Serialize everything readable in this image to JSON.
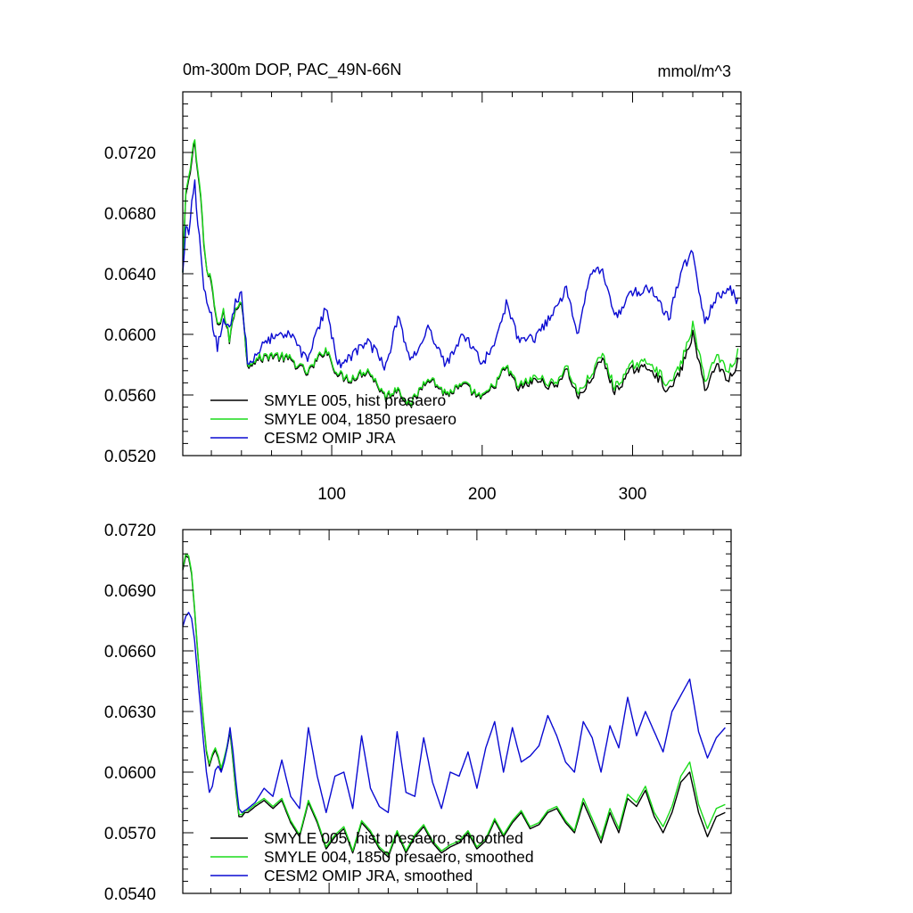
{
  "figure": {
    "title_left": "0m-300m DOP, PAC_49N-66N",
    "title_right": "mmol/m^3"
  },
  "chart_data": [
    {
      "type": "line",
      "title": "0m-300m DOP, PAC_49N-66N",
      "units": "mmol/m^3",
      "xlabel": "",
      "ylabel": "",
      "xlim": [
        1,
        372
      ],
      "ylim": [
        0.052,
        0.076
      ],
      "grid": false,
      "legend_position": "bottom-left",
      "x_ticks": [
        100,
        200,
        300
      ],
      "x_tick_labels": [
        "100",
        "200",
        "300"
      ],
      "y_ticks": [
        0.052,
        0.056,
        0.06,
        0.064,
        0.068,
        0.072
      ],
      "y_tick_labels": [
        "0.0520",
        "0.0560",
        "0.0600",
        "0.0640",
        "0.0680",
        "0.0720"
      ],
      "series": [
        {
          "name": "SMYLE 005, hist presaero",
          "color": "#000000",
          "noise": 0.0006,
          "x": [
            1,
            3,
            5,
            7,
            9,
            11,
            13,
            15,
            17,
            20,
            24,
            28,
            32,
            36,
            40,
            44,
            48,
            60,
            72,
            84,
            96,
            104,
            112,
            124,
            136,
            144,
            152,
            164,
            176,
            188,
            200,
            208,
            216,
            224,
            236,
            248,
            256,
            264,
            272,
            280,
            288,
            300,
            312,
            324,
            332,
            340,
            348,
            356,
            364,
            370
          ],
          "y": [
            0.064,
            0.0692,
            0.07,
            0.0715,
            0.0728,
            0.0706,
            0.069,
            0.066,
            0.064,
            0.0634,
            0.0604,
            0.0615,
            0.0596,
            0.0617,
            0.0622,
            0.058,
            0.0582,
            0.0586,
            0.0583,
            0.0574,
            0.059,
            0.0573,
            0.057,
            0.0576,
            0.0558,
            0.0564,
            0.0552,
            0.0572,
            0.056,
            0.0566,
            0.0557,
            0.0566,
            0.0578,
            0.0564,
            0.057,
            0.0565,
            0.0577,
            0.0558,
            0.057,
            0.0584,
            0.0562,
            0.0577,
            0.0578,
            0.0562,
            0.0576,
            0.06,
            0.0564,
            0.058,
            0.057,
            0.0582
          ]
        },
        {
          "name": "SMYLE 004, 1850 presaero",
          "color": "#1adb1a",
          "noise": 0.0006,
          "x": [
            1,
            3,
            5,
            7,
            9,
            11,
            13,
            15,
            17,
            20,
            24,
            28,
            32,
            36,
            40,
            44,
            48,
            60,
            72,
            84,
            96,
            104,
            112,
            124,
            136,
            144,
            152,
            164,
            176,
            188,
            200,
            208,
            216,
            224,
            236,
            248,
            256,
            264,
            272,
            280,
            288,
            300,
            312,
            324,
            332,
            340,
            348,
            356,
            364,
            370
          ],
          "y": [
            0.064,
            0.0694,
            0.0702,
            0.0718,
            0.073,
            0.0708,
            0.0692,
            0.0662,
            0.064,
            0.0636,
            0.0605,
            0.0616,
            0.0597,
            0.0618,
            0.0623,
            0.0581,
            0.0583,
            0.0587,
            0.0584,
            0.0575,
            0.0591,
            0.0574,
            0.0571,
            0.0577,
            0.0559,
            0.0565,
            0.0553,
            0.0573,
            0.0561,
            0.0567,
            0.0558,
            0.0567,
            0.0579,
            0.0566,
            0.0572,
            0.0567,
            0.0579,
            0.0561,
            0.0573,
            0.0587,
            0.0565,
            0.058,
            0.0582,
            0.0566,
            0.058,
            0.0606,
            0.057,
            0.0586,
            0.0576,
            0.0588
          ]
        },
        {
          "name": "CESM2 OMIP JRA",
          "color": "#0a0ad2",
          "noise": 0.0007,
          "x": [
            1,
            3,
            5,
            7,
            9,
            11,
            13,
            15,
            17,
            20,
            24,
            28,
            32,
            36,
            40,
            44,
            48,
            60,
            72,
            84,
            96,
            104,
            112,
            124,
            136,
            144,
            152,
            164,
            176,
            188,
            200,
            208,
            216,
            224,
            236,
            248,
            256,
            264,
            272,
            280,
            288,
            300,
            312,
            324,
            332,
            340,
            348,
            356,
            364,
            370
          ],
          "y": [
            0.064,
            0.0668,
            0.0668,
            0.0688,
            0.07,
            0.067,
            0.0655,
            0.063,
            0.062,
            0.0612,
            0.059,
            0.061,
            0.0602,
            0.062,
            0.0626,
            0.0583,
            0.0585,
            0.0598,
            0.06,
            0.0582,
            0.0618,
            0.058,
            0.0585,
            0.0596,
            0.0578,
            0.0612,
            0.0582,
            0.0604,
            0.058,
            0.06,
            0.058,
            0.0596,
            0.062,
            0.0596,
            0.0598,
            0.0616,
            0.063,
            0.06,
            0.064,
            0.0644,
            0.061,
            0.0628,
            0.063,
            0.061,
            0.064,
            0.0656,
            0.0606,
            0.0626,
            0.063,
            0.0622
          ]
        }
      ]
    },
    {
      "type": "line",
      "title": "",
      "xlabel": "",
      "ylabel": "",
      "xlim": [
        1,
        372
      ],
      "ylim": [
        0.054,
        0.072
      ],
      "grid": false,
      "legend_position": "bottom-left",
      "x_ticks": [
        100,
        200,
        300
      ],
      "x_tick_labels": [],
      "y_ticks": [
        0.054,
        0.057,
        0.06,
        0.063,
        0.066,
        0.069,
        0.072
      ],
      "y_tick_labels": [
        "0.0540",
        "0.0570",
        "0.0600",
        "0.0630",
        "0.0660",
        "0.0690",
        "0.0720"
      ],
      "series": [
        {
          "name": "SMYLE 005, hist presaero, smoothed",
          "color": "#000000",
          "noise": 0,
          "x": [
            1,
            3,
            5,
            7,
            9,
            11,
            13,
            15,
            17,
            19,
            21,
            23,
            25,
            27,
            29,
            31,
            33,
            35,
            37,
            39,
            41,
            43,
            45,
            50,
            56,
            62,
            68,
            74,
            80,
            86,
            92,
            98,
            104,
            110,
            116,
            122,
            128,
            134,
            140,
            146,
            152,
            158,
            164,
            170,
            176,
            182,
            188,
            194,
            200,
            206,
            212,
            218,
            224,
            230,
            236,
            242,
            248,
            254,
            260,
            266,
            272,
            278,
            284,
            290,
            296,
            302,
            308,
            314,
            320,
            326,
            332,
            338,
            344,
            350,
            356,
            362,
            368
          ],
          "y": [
            0.07,
            0.0707,
            0.0706,
            0.0698,
            0.068,
            0.066,
            0.0642,
            0.0625,
            0.061,
            0.0603,
            0.0608,
            0.0611,
            0.0607,
            0.0601,
            0.0606,
            0.0612,
            0.062,
            0.0605,
            0.059,
            0.0578,
            0.0578,
            0.058,
            0.058,
            0.0583,
            0.0586,
            0.0582,
            0.0586,
            0.0575,
            0.0568,
            0.0585,
            0.0575,
            0.0562,
            0.0568,
            0.0572,
            0.056,
            0.0575,
            0.057,
            0.0562,
            0.0558,
            0.057,
            0.056,
            0.0568,
            0.0573,
            0.0565,
            0.056,
            0.0563,
            0.0565,
            0.057,
            0.0562,
            0.0566,
            0.0576,
            0.0568,
            0.0575,
            0.058,
            0.0572,
            0.0574,
            0.058,
            0.0582,
            0.0575,
            0.057,
            0.0585,
            0.0575,
            0.0565,
            0.058,
            0.057,
            0.0587,
            0.0583,
            0.0591,
            0.0578,
            0.057,
            0.058,
            0.0595,
            0.06,
            0.058,
            0.0568,
            0.0578,
            0.058
          ]
        },
        {
          "name": "SMYLE 004, 1850 presaero, smoothed",
          "color": "#1adb1a",
          "noise": 0,
          "x": [
            1,
            3,
            5,
            7,
            9,
            11,
            13,
            15,
            17,
            19,
            21,
            23,
            25,
            27,
            29,
            31,
            33,
            35,
            37,
            39,
            41,
            43,
            45,
            50,
            56,
            62,
            68,
            74,
            80,
            86,
            92,
            98,
            104,
            110,
            116,
            122,
            128,
            134,
            140,
            146,
            152,
            158,
            164,
            170,
            176,
            182,
            188,
            194,
            200,
            206,
            212,
            218,
            224,
            230,
            236,
            242,
            248,
            254,
            260,
            266,
            272,
            278,
            284,
            290,
            296,
            302,
            308,
            314,
            320,
            326,
            332,
            338,
            344,
            350,
            356,
            362,
            368
          ],
          "y": [
            0.0701,
            0.0708,
            0.0707,
            0.0699,
            0.0681,
            0.0661,
            0.0643,
            0.0626,
            0.0611,
            0.0604,
            0.0609,
            0.0612,
            0.0608,
            0.0602,
            0.0607,
            0.0613,
            0.0621,
            0.0606,
            0.0591,
            0.0579,
            0.0579,
            0.0581,
            0.0581,
            0.0584,
            0.0587,
            0.0583,
            0.0587,
            0.0576,
            0.0569,
            0.0586,
            0.0576,
            0.0563,
            0.0569,
            0.0573,
            0.0561,
            0.0576,
            0.0571,
            0.0563,
            0.0559,
            0.0571,
            0.0561,
            0.0569,
            0.0574,
            0.0566,
            0.0561,
            0.0564,
            0.0566,
            0.0571,
            0.0563,
            0.0567,
            0.0577,
            0.0569,
            0.0576,
            0.0581,
            0.0573,
            0.0575,
            0.0581,
            0.0583,
            0.0576,
            0.0571,
            0.0587,
            0.0577,
            0.0567,
            0.0582,
            0.0572,
            0.0589,
            0.0585,
            0.0593,
            0.058,
            0.0573,
            0.0583,
            0.0598,
            0.0605,
            0.0584,
            0.0572,
            0.0582,
            0.0584
          ]
        },
        {
          "name": "CESM2 OMIP JRA, smoothed",
          "color": "#0a0ad2",
          "noise": 0,
          "x": [
            1,
            3,
            5,
            7,
            9,
            11,
            13,
            15,
            17,
            19,
            21,
            23,
            25,
            27,
            29,
            31,
            33,
            35,
            37,
            39,
            41,
            43,
            45,
            50,
            56,
            62,
            68,
            74,
            80,
            86,
            92,
            98,
            104,
            110,
            116,
            122,
            128,
            134,
            140,
            146,
            152,
            158,
            164,
            170,
            176,
            182,
            188,
            194,
            200,
            206,
            212,
            218,
            224,
            230,
            236,
            242,
            248,
            254,
            260,
            266,
            272,
            278,
            284,
            290,
            296,
            302,
            308,
            314,
            320,
            326,
            332,
            338,
            344,
            350,
            356,
            362,
            368
          ],
          "y": [
            0.0672,
            0.0677,
            0.0679,
            0.0676,
            0.0665,
            0.0648,
            0.0632,
            0.0615,
            0.06,
            0.059,
            0.0593,
            0.0601,
            0.0603,
            0.06,
            0.0605,
            0.0612,
            0.0622,
            0.061,
            0.0595,
            0.0582,
            0.058,
            0.0581,
            0.0582,
            0.0585,
            0.0592,
            0.0588,
            0.0606,
            0.0588,
            0.0582,
            0.0622,
            0.0598,
            0.058,
            0.0598,
            0.06,
            0.0582,
            0.0618,
            0.0592,
            0.0583,
            0.058,
            0.062,
            0.059,
            0.0588,
            0.0617,
            0.0595,
            0.0582,
            0.06,
            0.0598,
            0.061,
            0.0592,
            0.0612,
            0.0625,
            0.06,
            0.0622,
            0.0605,
            0.0608,
            0.0613,
            0.0628,
            0.0618,
            0.0605,
            0.06,
            0.0625,
            0.0617,
            0.06,
            0.0623,
            0.0612,
            0.0637,
            0.0618,
            0.063,
            0.062,
            0.061,
            0.063,
            0.0638,
            0.0646,
            0.062,
            0.0607,
            0.0617,
            0.0622
          ]
        }
      ]
    }
  ]
}
